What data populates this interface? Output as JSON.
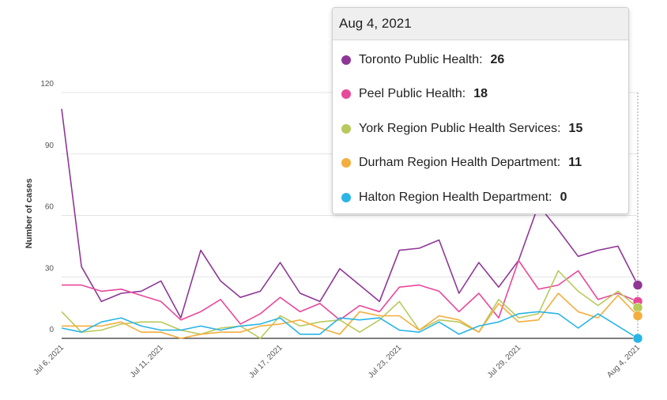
{
  "chart_data": {
    "type": "line",
    "ylabel": "Number of cases",
    "ylim": [
      0,
      120
    ],
    "yticks": [
      0,
      30,
      60,
      90,
      120
    ],
    "x": [
      "Jul 6, 2021",
      "Jul 7, 2021",
      "Jul 8, 2021",
      "Jul 9, 2021",
      "Jul 10, 2021",
      "Jul 11, 2021",
      "Jul 12, 2021",
      "Jul 13, 2021",
      "Jul 14, 2021",
      "Jul 15, 2021",
      "Jul 16, 2021",
      "Jul 17, 2021",
      "Jul 18, 2021",
      "Jul 19, 2021",
      "Jul 20, 2021",
      "Jul 21, 2021",
      "Jul 22, 2021",
      "Jul 23, 2021",
      "Jul 24, 2021",
      "Jul 25, 2021",
      "Jul 26, 2021",
      "Jul 27, 2021",
      "Jul 28, 2021",
      "Jul 29, 2021",
      "Jul 30, 2021",
      "Jul 31, 2021",
      "Aug 1, 2021",
      "Aug 2, 2021",
      "Aug 3, 2021",
      "Aug 4, 2021"
    ],
    "xtick_labels": [
      "Jul 6, 2021",
      "Jul 11, 2021",
      "Jul 17, 2021",
      "Jul 23, 2021",
      "Jul 29, 2021",
      "Aug 4, 2021"
    ],
    "series": [
      {
        "name": "Toronto Public Health",
        "color": "#8e3796",
        "values": [
          112,
          35,
          18,
          22,
          23,
          28,
          10,
          43,
          28,
          20,
          23,
          37,
          22,
          18,
          34,
          26,
          18,
          43,
          44,
          48,
          22,
          37,
          25,
          38,
          65,
          53,
          40,
          43,
          45,
          26
        ]
      },
      {
        "name": "Peel Public Health",
        "color": "#e8489a",
        "values": [
          26,
          26,
          23,
          24,
          21,
          18,
          9,
          13,
          19,
          7,
          12,
          20,
          13,
          17,
          9,
          16,
          13,
          25,
          26,
          23,
          13,
          22,
          10,
          38,
          24,
          26,
          33,
          19,
          22,
          18
        ]
      },
      {
        "name": "York Region Public Health Services",
        "color": "#b9c95b",
        "values": [
          13,
          3,
          4,
          7,
          8,
          8,
          4,
          2,
          5,
          6,
          0,
          11,
          6,
          8,
          9,
          3,
          9,
          18,
          4,
          9,
          8,
          3,
          19,
          10,
          12,
          33,
          23,
          16,
          23,
          15
        ]
      },
      {
        "name": "Durham Region Health Department",
        "color": "#f4ae3d",
        "values": [
          6,
          6,
          6,
          8,
          3,
          3,
          0,
          2,
          3,
          3,
          6,
          7,
          9,
          5,
          2,
          13,
          11,
          11,
          4,
          11,
          9,
          3,
          17,
          8,
          9,
          22,
          13,
          10,
          21,
          11
        ]
      },
      {
        "name": "Halton Region Health Department",
        "color": "#29b5e5",
        "values": [
          5,
          3,
          8,
          10,
          6,
          4,
          4,
          6,
          4,
          6,
          7,
          10,
          2,
          2,
          10,
          9,
          10,
          4,
          3,
          8,
          2,
          6,
          8,
          12,
          13,
          12,
          5,
          12,
          6,
          0
        ]
      }
    ],
    "tooltip": {
      "title": "Aug 4, 2021",
      "items": [
        {
          "label": "Toronto Public Health:",
          "value": "26",
          "color": "#8e3796"
        },
        {
          "label": "Peel Public Health:",
          "value": "18",
          "color": "#e8489a"
        },
        {
          "label": "York Region Public Health Services:",
          "value": "15",
          "color": "#b9c95b"
        },
        {
          "label": "Durham Region Health Department:",
          "value": "11",
          "color": "#f4ae3d"
        },
        {
          "label": "Halton Region Health Department:",
          "value": "0",
          "color": "#29b5e5"
        }
      ]
    }
  }
}
